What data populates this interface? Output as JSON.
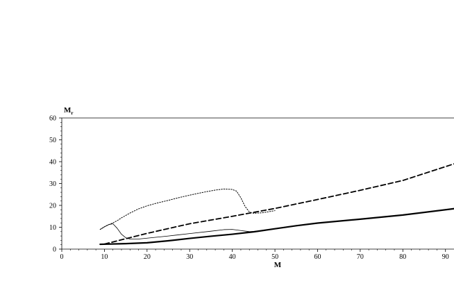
{
  "chart_data": {
    "type": "line",
    "title": "",
    "xlabel": "M",
    "ylabel": "M",
    "ylabel_subscript": "r",
    "xlim": [
      0,
      92
    ],
    "ylim": [
      0,
      60
    ],
    "xticks": [
      0,
      10,
      20,
      30,
      40,
      50,
      60,
      70,
      80,
      90
    ],
    "yticks": [
      0,
      10,
      20,
      30,
      40,
      50,
      60
    ],
    "grid": false,
    "legend": "none",
    "series": [
      {
        "style": "dotted",
        "points": [
          [
            9,
            9
          ],
          [
            10,
            10.2
          ],
          [
            11,
            11.2
          ],
          [
            12,
            12
          ],
          [
            13,
            13
          ],
          [
            14,
            14.3
          ],
          [
            16,
            16.5
          ],
          [
            18,
            18.4
          ],
          [
            20,
            19.8
          ],
          [
            22,
            20.9
          ],
          [
            25,
            22.3
          ],
          [
            28,
            23.8
          ],
          [
            31,
            25.1
          ],
          [
            34,
            26.3
          ],
          [
            36,
            27
          ],
          [
            38,
            27.5
          ],
          [
            40,
            27.3
          ],
          [
            41,
            26.5
          ],
          [
            42,
            23.5
          ],
          [
            43,
            19.5
          ],
          [
            44,
            17
          ],
          [
            45,
            16.4
          ],
          [
            47,
            16.6
          ],
          [
            50,
            17.6
          ]
        ]
      },
      {
        "style": "thin-solid",
        "points": [
          [
            9,
            9
          ],
          [
            10,
            10.2
          ],
          [
            11,
            11.2
          ],
          [
            12,
            11.6
          ],
          [
            13,
            9.5
          ],
          [
            14,
            6.8
          ],
          [
            15,
            5.2
          ],
          [
            16,
            4.6
          ],
          [
            18,
            4.6
          ],
          [
            20,
            5
          ],
          [
            25,
            6
          ],
          [
            30,
            7.1
          ],
          [
            35,
            8.2
          ],
          [
            38,
            8.9
          ],
          [
            40,
            9
          ],
          [
            42,
            8.5
          ],
          [
            44,
            8
          ],
          [
            46,
            8.2
          ]
        ]
      },
      {
        "style": "dashed",
        "points": [
          [
            10,
            2.3
          ],
          [
            20,
            7.2
          ],
          [
            30,
            11.6
          ],
          [
            40,
            15
          ],
          [
            50,
            18.6
          ],
          [
            60,
            22.7
          ],
          [
            70,
            26.9
          ],
          [
            80,
            31.4
          ],
          [
            92,
            39
          ]
        ]
      },
      {
        "style": "thick-solid",
        "points": [
          [
            9,
            2.2
          ],
          [
            15,
            2.5
          ],
          [
            20,
            2.9
          ],
          [
            25,
            3.8
          ],
          [
            30,
            4.9
          ],
          [
            35,
            5.9
          ],
          [
            40,
            6.8
          ],
          [
            45,
            7.9
          ],
          [
            50,
            9.3
          ],
          [
            55,
            10.7
          ],
          [
            60,
            11.9
          ],
          [
            70,
            13.7
          ],
          [
            80,
            15.6
          ],
          [
            92,
            18.5
          ]
        ]
      }
    ]
  }
}
